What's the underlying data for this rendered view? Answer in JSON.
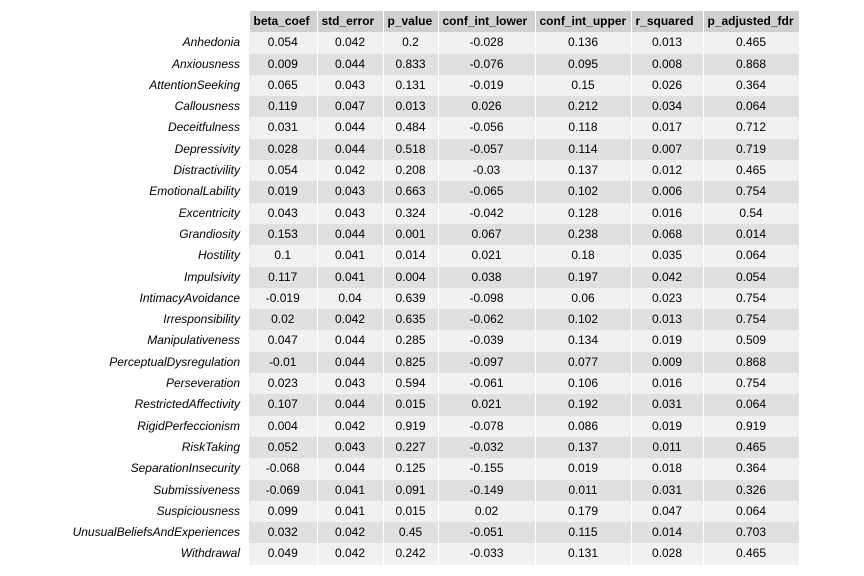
{
  "table": {
    "columns": [
      "beta_coef",
      "std_error",
      "p_value",
      "conf_int_lower",
      "conf_int_upper",
      "r_squared",
      "p_adjusted_fdr"
    ],
    "rows": [
      {
        "label": "Anhedonia",
        "values": [
          "0.054",
          "0.042",
          "0.2",
          "-0.028",
          "0.136",
          "0.013",
          "0.465"
        ]
      },
      {
        "label": "Anxiousness",
        "values": [
          "0.009",
          "0.044",
          "0.833",
          "-0.076",
          "0.095",
          "0.008",
          "0.868"
        ]
      },
      {
        "label": "AttentionSeeking",
        "values": [
          "0.065",
          "0.043",
          "0.131",
          "-0.019",
          "0.15",
          "0.026",
          "0.364"
        ]
      },
      {
        "label": "Callousness",
        "values": [
          "0.119",
          "0.047",
          "0.013",
          "0.026",
          "0.212",
          "0.034",
          "0.064"
        ]
      },
      {
        "label": "Deceitfulness",
        "values": [
          "0.031",
          "0.044",
          "0.484",
          "-0.056",
          "0.118",
          "0.017",
          "0.712"
        ]
      },
      {
        "label": "Depressivity",
        "values": [
          "0.028",
          "0.044",
          "0.518",
          "-0.057",
          "0.114",
          "0.007",
          "0.719"
        ]
      },
      {
        "label": "Distractivility",
        "values": [
          "0.054",
          "0.042",
          "0.208",
          "-0.03",
          "0.137",
          "0.012",
          "0.465"
        ]
      },
      {
        "label": "EmotionalLability",
        "values": [
          "0.019",
          "0.043",
          "0.663",
          "-0.065",
          "0.102",
          "0.006",
          "0.754"
        ]
      },
      {
        "label": "Excentricity",
        "values": [
          "0.043",
          "0.043",
          "0.324",
          "-0.042",
          "0.128",
          "0.016",
          "0.54"
        ]
      },
      {
        "label": "Grandiosity",
        "values": [
          "0.153",
          "0.044",
          "0.001",
          "0.067",
          "0.238",
          "0.068",
          "0.014"
        ]
      },
      {
        "label": "Hostility",
        "values": [
          "0.1",
          "0.041",
          "0.014",
          "0.021",
          "0.18",
          "0.035",
          "0.064"
        ]
      },
      {
        "label": "Impulsivity",
        "values": [
          "0.117",
          "0.041",
          "0.004",
          "0.038",
          "0.197",
          "0.042",
          "0.054"
        ]
      },
      {
        "label": "IntimacyAvoidance",
        "values": [
          "-0.019",
          "0.04",
          "0.639",
          "-0.098",
          "0.06",
          "0.023",
          "0.754"
        ]
      },
      {
        "label": "Irresponsibility",
        "values": [
          "0.02",
          "0.042",
          "0.635",
          "-0.062",
          "0.102",
          "0.013",
          "0.754"
        ]
      },
      {
        "label": "Manipulativeness",
        "values": [
          "0.047",
          "0.044",
          "0.285",
          "-0.039",
          "0.134",
          "0.019",
          "0.509"
        ]
      },
      {
        "label": "PerceptualDysregulation",
        "values": [
          "-0.01",
          "0.044",
          "0.825",
          "-0.097",
          "0.077",
          "0.009",
          "0.868"
        ]
      },
      {
        "label": "Perseveration",
        "values": [
          "0.023",
          "0.043",
          "0.594",
          "-0.061",
          "0.106",
          "0.016",
          "0.754"
        ]
      },
      {
        "label": "RestrictedAffectivity",
        "values": [
          "0.107",
          "0.044",
          "0.015",
          "0.021",
          "0.192",
          "0.031",
          "0.064"
        ]
      },
      {
        "label": "RigidPerfeccionism",
        "values": [
          "0.004",
          "0.042",
          "0.919",
          "-0.078",
          "0.086",
          "0.019",
          "0.919"
        ]
      },
      {
        "label": "RiskTaking",
        "values": [
          "0.052",
          "0.043",
          "0.227",
          "-0.032",
          "0.137",
          "0.011",
          "0.465"
        ]
      },
      {
        "label": "SeparationInsecurity",
        "values": [
          "-0.068",
          "0.044",
          "0.125",
          "-0.155",
          "0.019",
          "0.018",
          "0.364"
        ]
      },
      {
        "label": "Submissiveness",
        "values": [
          "-0.069",
          "0.041",
          "0.091",
          "-0.149",
          "0.011",
          "0.031",
          "0.326"
        ]
      },
      {
        "label": "Suspiciousness",
        "values": [
          "0.099",
          "0.041",
          "0.015",
          "0.02",
          "0.179",
          "0.047",
          "0.064"
        ]
      },
      {
        "label": "UnusualBeliefsAndExperiences",
        "values": [
          "0.032",
          "0.042",
          "0.45",
          "-0.051",
          "0.115",
          "0.014",
          "0.703"
        ]
      },
      {
        "label": "Withdrawal",
        "values": [
          "0.049",
          "0.042",
          "0.242",
          "-0.033",
          "0.131",
          "0.028",
          "0.465"
        ]
      }
    ]
  },
  "colors": {
    "header_bg": "#d0d0d0",
    "row_odd_bg": "#f1f1f1",
    "row_even_bg": "#e0e0e0"
  }
}
